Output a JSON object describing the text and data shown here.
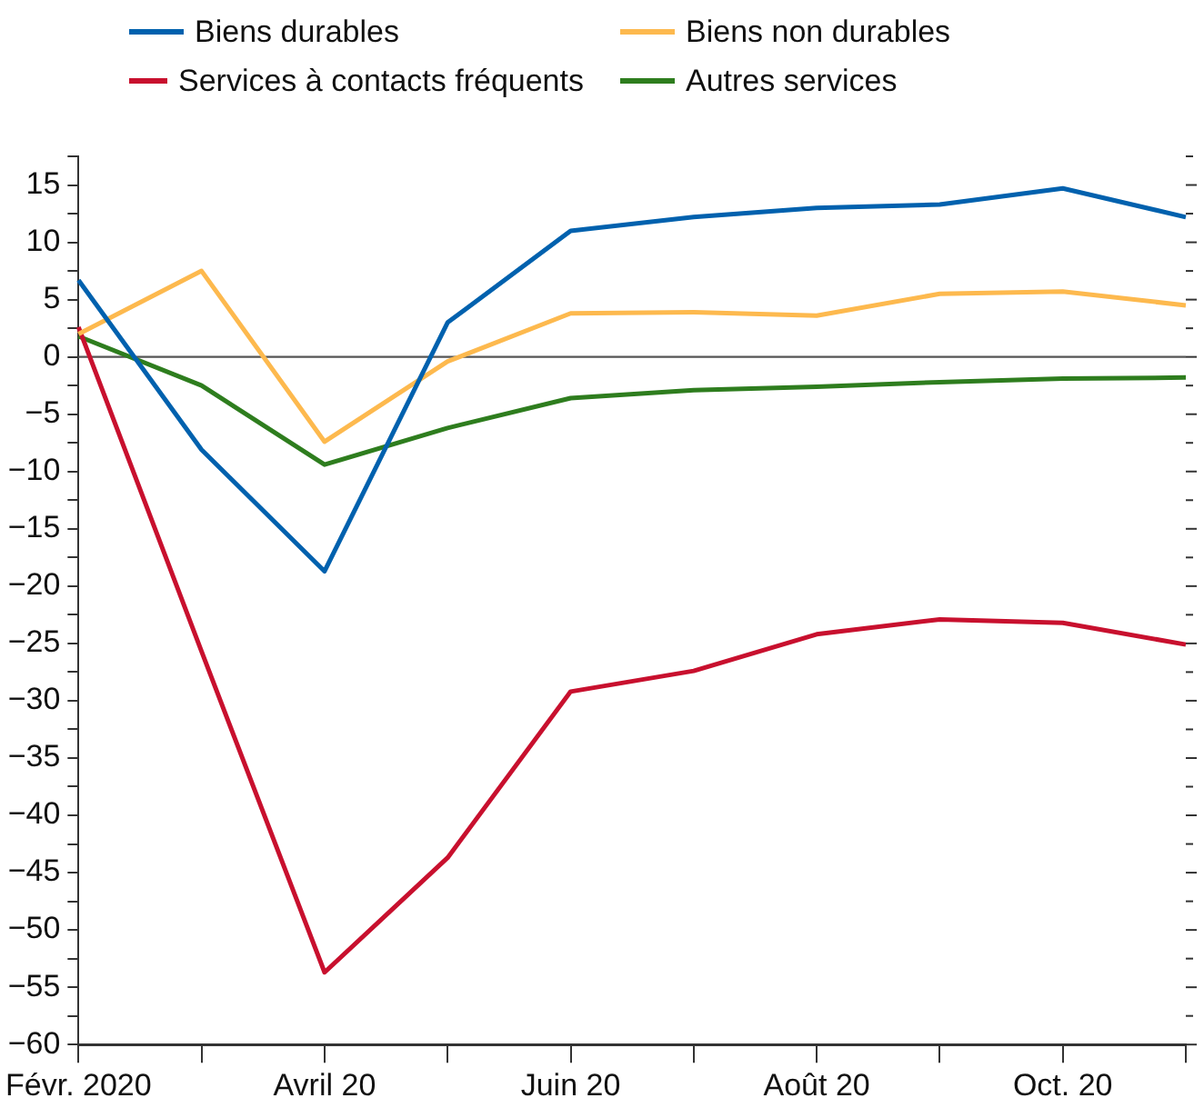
{
  "chart_data": {
    "type": "line",
    "categories": [
      "Févr. 2020",
      null,
      "Avril 20",
      null,
      "Juin 20",
      null,
      "Août 20",
      null,
      "Oct. 20",
      null
    ],
    "series": [
      {
        "name": "Biens durables",
        "color": "#0061ae",
        "values": [
          6.7,
          -8.1,
          -18.7,
          3.0,
          11.0,
          12.2,
          13.0,
          13.3,
          14.7,
          12.2
        ]
      },
      {
        "name": "Biens non durables",
        "color": "#fdb94e",
        "values": [
          2.0,
          7.5,
          -7.4,
          -0.4,
          3.8,
          3.9,
          3.6,
          5.5,
          5.7,
          4.5
        ]
      },
      {
        "name": "Services à contacts fréquents",
        "color": "#c8102e",
        "values": [
          2.6,
          -25.7,
          -53.7,
          -43.7,
          -29.2,
          -27.4,
          -24.2,
          -22.9,
          -23.2,
          -25.1
        ]
      },
      {
        "name": "Autres services",
        "color": "#2e7d1e",
        "values": [
          1.8,
          -2.5,
          -9.4,
          -6.2,
          -3.6,
          -2.9,
          -2.6,
          -2.2,
          -1.9,
          -1.8
        ]
      }
    ],
    "ylim": [
      -60,
      17.5
    ],
    "yticks": [
      -60,
      {
        "value": -57.5,
        "label": null
      },
      -55,
      {
        "value": -52.5,
        "label": null
      },
      -50,
      {
        "value": -47.5,
        "label": null
      },
      -45,
      {
        "value": -42.5,
        "label": null
      },
      -40,
      {
        "value": -37.5,
        "label": null
      },
      -35,
      {
        "value": -32.5,
        "label": null
      },
      -30,
      {
        "value": -27.5,
        "label": null
      },
      -25,
      {
        "value": -22.5,
        "label": null
      },
      -20,
      {
        "value": -17.5,
        "label": null
      },
      -15,
      {
        "value": -12.5,
        "label": null
      },
      -10,
      {
        "value": -7.5,
        "label": null
      },
      -5,
      {
        "value": -2.5,
        "label": null
      },
      0,
      {
        "value": 2.5,
        "label": null
      },
      5,
      {
        "value": 7.5,
        "label": null
      },
      10,
      {
        "value": 12.5,
        "label": null
      },
      15,
      {
        "value": 17.5,
        "label": null
      }
    ],
    "ref_lines": [
      {
        "axis": "y",
        "value": 0,
        "color": "#555555"
      }
    ],
    "legend": "top",
    "grid": false,
    "marker": "none",
    "line_style": "solid"
  }
}
